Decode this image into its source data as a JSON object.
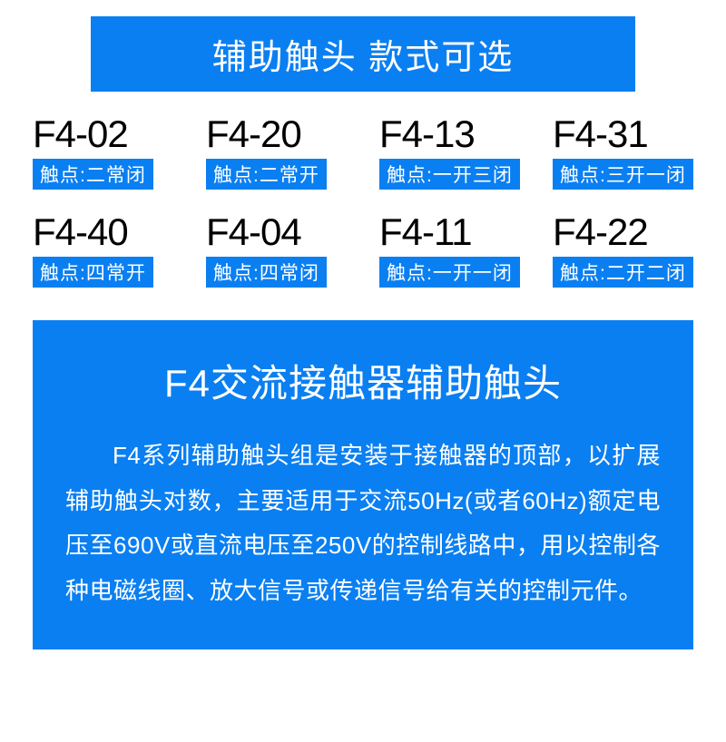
{
  "header": {
    "title": "辅助触头 款式可选"
  },
  "models": [
    {
      "code": "F4-02",
      "desc": "触点:二常闭"
    },
    {
      "code": "F4-20",
      "desc": "触点:二常开"
    },
    {
      "code": "F4-13",
      "desc": "触点:一开三闭"
    },
    {
      "code": "F4-31",
      "desc": "触点:三开一闭"
    },
    {
      "code": "F4-40",
      "desc": "触点:四常开"
    },
    {
      "code": "F4-04",
      "desc": "触点:四常闭"
    },
    {
      "code": "F4-11",
      "desc": "触点:一开一闭"
    },
    {
      "code": "F4-22",
      "desc": "触点:二开二闭"
    }
  ],
  "info": {
    "title": "F4交流接触器辅助触头",
    "body": "F4系列辅助触头组是安装于接触器的顶部，以扩展辅助触头对数，主要适用于交流50Hz(或者60Hz)额定电压至690V或直流电压至250V的控制线路中，用以控制各种电磁线圈、放大信号或传递信号给有关的控制元件。"
  },
  "colors": {
    "primary_blue": "#0a7ff2",
    "white": "#ffffff",
    "black": "#000000"
  },
  "typography": {
    "header_fontsize": 38,
    "model_code_fontsize": 42,
    "model_desc_fontsize": 21,
    "info_title_fontsize": 42,
    "info_body_fontsize": 26
  }
}
